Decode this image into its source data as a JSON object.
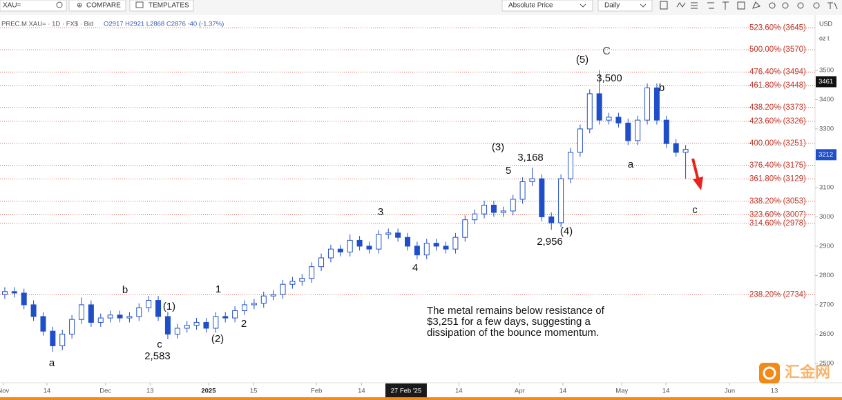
{
  "toolbar": {
    "symbol": "XAU=",
    "compare": "COMPARE",
    "templates": "TEMPLATES",
    "price_mode": "Absolute Price",
    "interval": "Daily"
  },
  "header": {
    "instrument": "PREC.M.XAU= · 1D · FX$ · Bid",
    "ohlc": "O2917 H2921 L2868 C2876 -40 (-1.37%)"
  },
  "axis_units": {
    "currency": "USD",
    "unit": "oz t"
  },
  "watermark": "汇金网",
  "chart_data": {
    "type": "candlestick",
    "up_color": "#ffffff",
    "down_color": "#1f4fc8",
    "edge_color": "#1f4fc8",
    "x": [
      1,
      3,
      5,
      7,
      9,
      11,
      13,
      15,
      17,
      19,
      21,
      23,
      25,
      27,
      29,
      31,
      33,
      35,
      37,
      39,
      41,
      43,
      45,
      47,
      49,
      51,
      53,
      55,
      57,
      59,
      61,
      63,
      65,
      67,
      69,
      71,
      73,
      75,
      77,
      79,
      81,
      83,
      85,
      87,
      89,
      91,
      93,
      95,
      97,
      99,
      101,
      103,
      105,
      107,
      109,
      111,
      113,
      115,
      117,
      119,
      121,
      123,
      125,
      127,
      129,
      131,
      133,
      135,
      137,
      139,
      141,
      143
    ],
    "open": [
      2735,
      2745,
      2740,
      2700,
      2660,
      2610,
      2560,
      2600,
      2650,
      2700,
      2640,
      2655,
      2665,
      2655,
      2660,
      2690,
      2715,
      2660,
      2600,
      2620,
      2630,
      2640,
      2620,
      2660,
      2655,
      2680,
      2700,
      2705,
      2730,
      2735,
      2770,
      2780,
      2790,
      2830,
      2860,
      2890,
      2880,
      2920,
      2900,
      2890,
      2940,
      2945,
      2930,
      2900,
      2870,
      2910,
      2900,
      2890,
      2930,
      2990,
      3010,
      3040,
      3015,
      3020,
      3060,
      3120,
      3130,
      3000,
      2980,
      3130,
      3220,
      3300,
      3420,
      3330,
      3340,
      3320,
      3260,
      3330,
      3440,
      3330,
      3250,
      3220
    ],
    "high": [
      2760,
      2760,
      2755,
      2715,
      2675,
      2625,
      2615,
      2665,
      2725,
      2715,
      2670,
      2680,
      2680,
      2675,
      2705,
      2730,
      2730,
      2675,
      2635,
      2645,
      2655,
      2655,
      2675,
      2675,
      2695,
      2715,
      2720,
      2745,
      2750,
      2785,
      2795,
      2805,
      2845,
      2875,
      2905,
      2905,
      2940,
      2935,
      2915,
      2955,
      2960,
      2960,
      2945,
      2915,
      2925,
      2925,
      2915,
      2945,
      3005,
      3025,
      3055,
      3055,
      3035,
      3075,
      3135,
      3168,
      3145,
      3015,
      3145,
      3235,
      3315,
      3435,
      3500,
      3355,
      3355,
      3335,
      3345,
      3455,
      3455,
      3345,
      3265,
      3245
    ],
    "low": [
      2720,
      2725,
      2685,
      2645,
      2595,
      2540,
      2545,
      2585,
      2635,
      2625,
      2625,
      2640,
      2640,
      2640,
      2645,
      2675,
      2645,
      2583,
      2585,
      2605,
      2615,
      2605,
      2605,
      2640,
      2640,
      2665,
      2685,
      2690,
      2715,
      2720,
      2755,
      2765,
      2775,
      2815,
      2845,
      2865,
      2865,
      2885,
      2875,
      2875,
      2925,
      2915,
      2885,
      2855,
      2855,
      2885,
      2875,
      2875,
      2915,
      2975,
      2995,
      3000,
      3000,
      3005,
      3045,
      3105,
      2985,
      2956,
      2965,
      3115,
      3205,
      3285,
      3315,
      3315,
      3305,
      3245,
      3245,
      3315,
      3315,
      3235,
      3205,
      3130
    ],
    "close": [
      2745,
      2740,
      2700,
      2660,
      2610,
      2560,
      2600,
      2650,
      2700,
      2640,
      2655,
      2665,
      2655,
      2660,
      2690,
      2715,
      2660,
      2600,
      2620,
      2630,
      2640,
      2620,
      2660,
      2655,
      2680,
      2700,
      2705,
      2730,
      2735,
      2770,
      2780,
      2790,
      2830,
      2860,
      2890,
      2880,
      2920,
      2900,
      2890,
      2940,
      2945,
      2930,
      2900,
      2870,
      2910,
      2900,
      2890,
      2930,
      2990,
      3010,
      3040,
      3015,
      3020,
      3060,
      3120,
      3130,
      3000,
      2980,
      3130,
      3220,
      3300,
      3420,
      3330,
      3340,
      3320,
      3260,
      3330,
      3440,
      3330,
      3250,
      3220,
      3230
    ],
    "xlim": [
      0,
      170
    ],
    "xticks": [
      {
        "value": 0.7,
        "label": "Nov"
      },
      {
        "value": 9.8,
        "label": "14"
      },
      {
        "value": 22,
        "label": "Dec"
      },
      {
        "value": 31.3,
        "label": "13"
      },
      {
        "value": 43.5,
        "label": "2025"
      },
      {
        "value": 52.9,
        "label": "15"
      },
      {
        "value": 66,
        "label": "Feb"
      },
      {
        "value": 75.4,
        "label": "14"
      },
      {
        "value": 95.7,
        "label": "14"
      },
      {
        "value": 108.4,
        "label": "Apr"
      },
      {
        "value": 117.4,
        "label": "14"
      },
      {
        "value": 129.7,
        "label": "May"
      },
      {
        "value": 138.9,
        "label": "14"
      },
      {
        "value": 152.2,
        "label": "Jun"
      },
      {
        "value": 161.5,
        "label": "13"
      }
    ],
    "crosshair_label": {
      "value": 84.7,
      "label": "27 Feb '25"
    },
    "ylim": [
      2434,
      3688
    ],
    "yticks": [
      2500,
      2600,
      2700,
      2800,
      2900,
      3000,
      3100,
      3200,
      3300,
      3400,
      3500
    ],
    "fib_color": "#c0392b",
    "fib_levels": [
      {
        "value": 3645,
        "label": "523.60% (3645)"
      },
      {
        "value": 3570,
        "label": "500.00% (3570)"
      },
      {
        "value": 3494,
        "label": "476.40% (3494)"
      },
      {
        "value": 3448,
        "label": "461.80% (3448)"
      },
      {
        "value": 3373,
        "label": "438.20% (3373)"
      },
      {
        "value": 3326,
        "label": "423.60% (3326)"
      },
      {
        "value": 3251,
        "label": "400.00% (3251)"
      },
      {
        "value": 3175,
        "label": "376.40% (3175)"
      },
      {
        "value": 3129,
        "label": "361.80% (3129)"
      },
      {
        "value": 3053,
        "label": "338.20% (3053)"
      },
      {
        "value": 3007,
        "label": "323.60% (3007)"
      },
      {
        "value": 2978,
        "label": "314.60% (2978)"
      },
      {
        "value": 2734,
        "label": "238.20% (2734)"
      }
    ],
    "price_tags": [
      3461,
      3212
    ],
    "price_tag_colors": [
      "#111111",
      "#1f4fc8"
    ],
    "annotations": [
      "a",
      "b",
      "c",
      "2,583",
      "(1)",
      "1",
      "(2)",
      "2",
      "3",
      "4",
      "5",
      "(3)",
      "3,168",
      "(4)",
      "2,956",
      "(5)",
      "C",
      "3,500",
      "b",
      "a",
      "c"
    ],
    "note": [
      "The metal remains below resistance of",
      "$3,251 for a few days, suggesting a",
      "dissipation of the bounce momentum."
    ]
  }
}
